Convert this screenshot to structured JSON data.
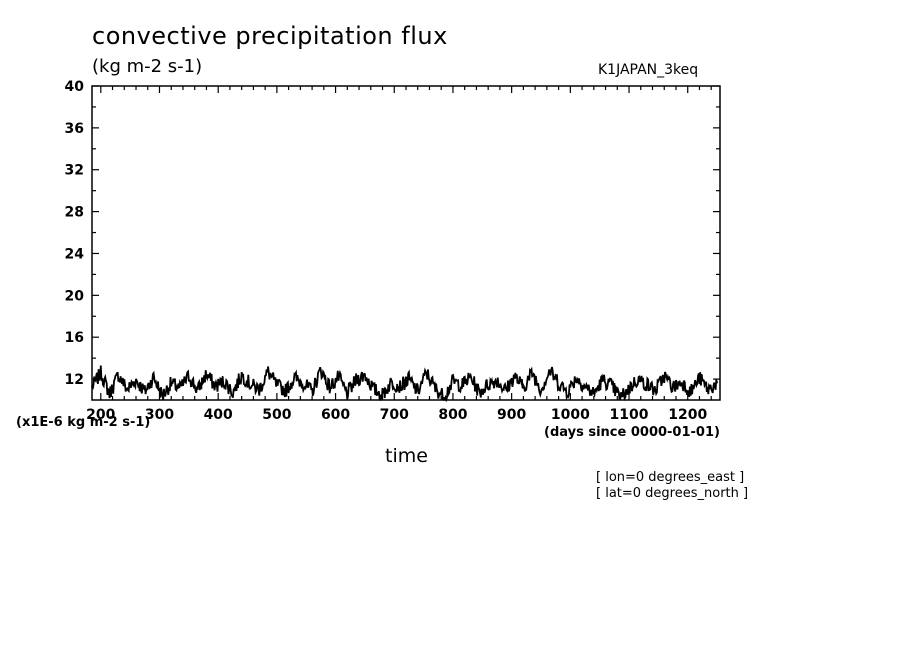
{
  "chart_data": {
    "type": "line",
    "title": "convective precipitation flux",
    "units": "(kg m-2 s-1)",
    "dataset_label": "K1JAPAN_3keq",
    "xlabel": "time",
    "x_units": "(days since 0000-01-01)",
    "y_scale_note": "(x1E-6 kg m-2 s-1)",
    "notes": [
      "[ lon=0 degrees_east ]",
      "[ lat=0 degrees_north ]"
    ],
    "xlim": [
      185,
      1255
    ],
    "ylim": [
      10,
      40
    ],
    "x_ticks": [
      200,
      300,
      400,
      500,
      600,
      700,
      800,
      900,
      1000,
      1100,
      1200
    ],
    "y_ticks": [
      12,
      16,
      20,
      24,
      28,
      32,
      36,
      40
    ],
    "line_color": "#000000",
    "series": [
      {
        "x": [
          185,
          200,
          215,
          230,
          245,
          260,
          275,
          290,
          305,
          320,
          335,
          350,
          365,
          380,
          395,
          410,
          425,
          440,
          455,
          470,
          485,
          500,
          515,
          530,
          545,
          560,
          575,
          590,
          605,
          620,
          635,
          650,
          665,
          680,
          695,
          710,
          725,
          740,
          755,
          770,
          785,
          800,
          815,
          830,
          845,
          860,
          875,
          890,
          905,
          920,
          935,
          950,
          965,
          980,
          995,
          1010,
          1025,
          1040,
          1055,
          1070,
          1085,
          1100,
          1115,
          1130,
          1145,
          1160,
          1175,
          1190,
          1205,
          1220,
          1235,
          1250
        ],
        "y": [
          11.2,
          12.6,
          10.6,
          12.4,
          11.0,
          11.9,
          10.8,
          12.2,
          10.4,
          11.6,
          11.1,
          12.3,
          10.9,
          12.5,
          11.3,
          11.8,
          10.7,
          12.4,
          11.5,
          11.0,
          12.7,
          11.4,
          10.9,
          12.1,
          11.6,
          10.8,
          12.9,
          11.2,
          12.2,
          10.6,
          11.9,
          12.4,
          11.0,
          10.5,
          11.7,
          11.3,
          12.0,
          10.8,
          12.6,
          11.1,
          10.3,
          11.8,
          11.4,
          12.2,
          10.7,
          11.5,
          11.9,
          10.9,
          12.3,
          11.2,
          12.6,
          11.0,
          12.8,
          11.6,
          10.8,
          12.1,
          11.3,
          10.6,
          11.9,
          11.4,
          10.2,
          11.1,
          12.0,
          11.5,
          10.9,
          12.3,
          11.2,
          11.7,
          10.8,
          12.1,
          11.0,
          11.6
        ]
      }
    ]
  }
}
